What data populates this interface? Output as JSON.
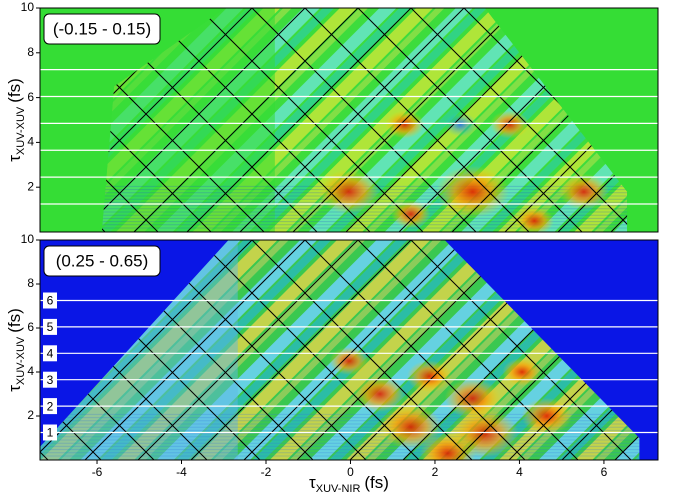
{
  "chart_data": [
    {
      "type": "heatmap",
      "annotation": "(-0.15 - 0.15)",
      "background_color": "#35dd35",
      "xlim": [
        -7.35,
        7.28
      ],
      "ylim": [
        0,
        10
      ],
      "yticks": [
        2,
        4,
        6,
        8,
        10
      ],
      "lines": [
        1.25,
        2.45,
        3.65,
        4.85,
        6.05,
        7.25
      ],
      "y_label": {
        "symbol": "τ",
        "subscript": "XUV-XUV",
        "unit": "(fs)"
      }
    },
    {
      "type": "heatmap",
      "annotation": "(0.25 - 0.65)",
      "background_color": "#0a16e6",
      "xlim": [
        -7.35,
        7.28
      ],
      "ylim": [
        0,
        10
      ],
      "yticks": [
        2,
        4,
        6,
        8,
        10
      ],
      "xticks": [
        -6,
        -4,
        -2,
        0,
        2,
        4,
        6
      ],
      "lines": [
        1.25,
        2.45,
        3.65,
        4.85,
        6.05,
        7.25
      ],
      "line_labels": [
        "1",
        "2",
        "3",
        "4",
        "5",
        "6"
      ],
      "y_label": {
        "symbol": "τ",
        "subscript": "XUV-XUV",
        "unit": "(fs)"
      },
      "x_label": {
        "symbol": "τ",
        "subscript": "XUV-NIR",
        "unit": "(fs)"
      }
    }
  ]
}
